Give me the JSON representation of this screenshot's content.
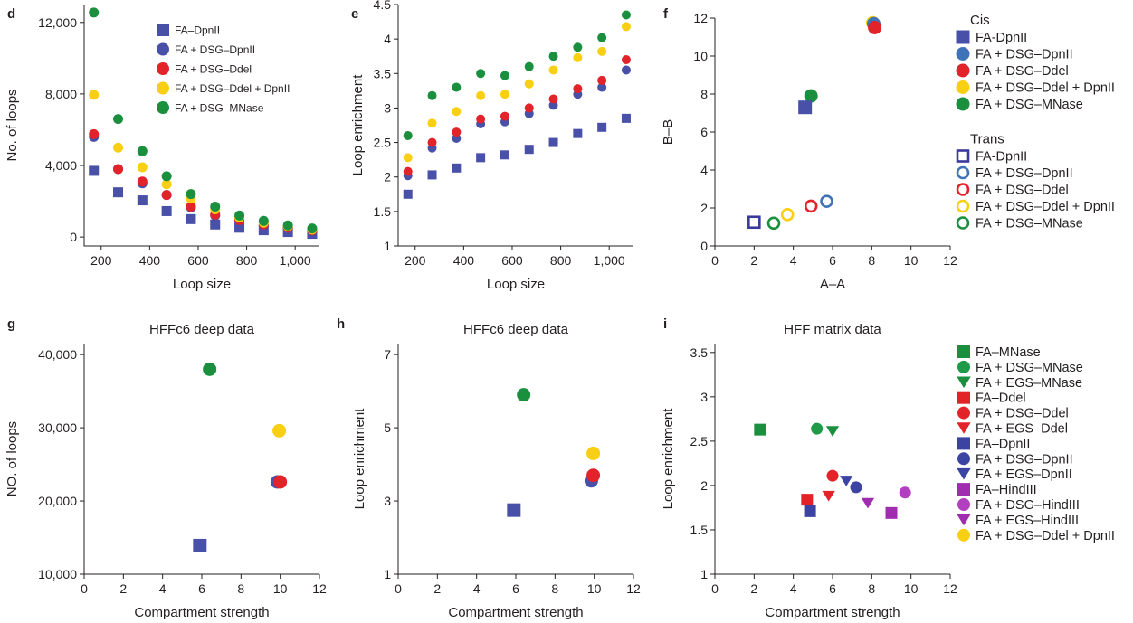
{
  "colors": {
    "blue_square": "#4850a8",
    "blue_circle": "#3e73b8",
    "red": "#e3232a",
    "yellow": "#f9cf13",
    "green": "#1a8f3e",
    "green_light": "#1f9a48",
    "navy": "#3a3a9c",
    "purple": "#a02caf",
    "purple_light": "#b23fc0",
    "blue_i": "#3b43a3"
  },
  "chart_data": [
    {
      "panel": "d",
      "type": "scatter",
      "title": "",
      "xlabel": "Loop size",
      "ylabel": "No. of loops",
      "xlim": [
        130,
        1100
      ],
      "ylim": [
        -500,
        13000
      ],
      "xticks": [
        200,
        400,
        600,
        800,
        1000
      ],
      "xtick_labels": [
        "200",
        "400",
        "600",
        "800",
        "1,000"
      ],
      "yticks": [
        0,
        4000,
        8000,
        12000
      ],
      "ytick_labels": [
        "0",
        "4,000",
        "8,000",
        "12,000"
      ],
      "x": [
        170,
        270,
        370,
        470,
        570,
        670,
        770,
        870,
        970,
        1070
      ],
      "series": [
        {
          "name": "FA–DpnII",
          "marker": "square",
          "color": "#4850a8",
          "values": [
            3700,
            2500,
            2050,
            1450,
            1000,
            700,
            520,
            380,
            280,
            180
          ]
        },
        {
          "name": "FA + DSG–DpnII",
          "marker": "circle",
          "color": "#4850a8",
          "values": [
            5600,
            3800,
            3000,
            2350,
            1650,
            1200,
            900,
            650,
            480,
            330
          ]
        },
        {
          "name": "FA + DSG–Ddel",
          "marker": "circle",
          "color": "#e3232a",
          "values": [
            5750,
            3800,
            3100,
            2350,
            1700,
            1250,
            950,
            700,
            520,
            370
          ]
        },
        {
          "name": "FA + DSG–Ddel + DpnII",
          "marker": "circle",
          "color": "#f9cf13",
          "values": [
            7950,
            5000,
            3900,
            2950,
            2150,
            1550,
            1100,
            800,
            600,
            420
          ]
        },
        {
          "name": "FA + DSG–MNase",
          "marker": "circle",
          "color": "#1a8f3e",
          "values": [
            12550,
            6600,
            4800,
            3400,
            2400,
            1700,
            1200,
            900,
            650,
            480
          ]
        }
      ],
      "legend": "top-right"
    },
    {
      "panel": "e",
      "type": "scatter",
      "title": "",
      "xlabel": "Loop size",
      "ylabel": "Loop enrichment",
      "xlim": [
        130,
        1100
      ],
      "ylim": [
        1,
        4.5
      ],
      "xticks": [
        200,
        400,
        600,
        800,
        1000
      ],
      "xtick_labels": [
        "200",
        "400",
        "600",
        "800",
        "1,000"
      ],
      "yticks": [
        1,
        1.5,
        2,
        2.5,
        3,
        3.5,
        4,
        4.5
      ],
      "ytick_labels": [
        "1",
        "1.5",
        "2",
        "2.5",
        "3",
        "3.5",
        "4",
        "4.5"
      ],
      "x": [
        170,
        270,
        370,
        470,
        570,
        670,
        770,
        870,
        970,
        1070
      ],
      "series": [
        {
          "name": "FA–DpnII",
          "marker": "square",
          "color": "#4850a8",
          "values": [
            1.75,
            2.03,
            2.13,
            2.28,
            2.32,
            2.4,
            2.5,
            2.63,
            2.72,
            2.85
          ]
        },
        {
          "name": "FA + DSG–DpnII",
          "marker": "circle",
          "color": "#4850a8",
          "values": [
            2.02,
            2.42,
            2.56,
            2.77,
            2.8,
            2.92,
            3.04,
            3.2,
            3.3,
            3.55
          ]
        },
        {
          "name": "FA + DSG–Ddel",
          "marker": "circle",
          "color": "#e3232a",
          "values": [
            2.08,
            2.5,
            2.65,
            2.84,
            2.88,
            3.0,
            3.13,
            3.28,
            3.4,
            3.7
          ]
        },
        {
          "name": "FA + DSG–Ddel + DpnII",
          "marker": "circle",
          "color": "#f9cf13",
          "values": [
            2.28,
            2.78,
            2.95,
            3.18,
            3.2,
            3.35,
            3.55,
            3.73,
            3.82,
            4.18
          ]
        },
        {
          "name": "FA + DSG–MNase",
          "marker": "circle",
          "color": "#1a8f3e",
          "values": [
            2.6,
            3.18,
            3.3,
            3.5,
            3.47,
            3.6,
            3.75,
            3.88,
            4.02,
            4.35
          ]
        }
      ]
    },
    {
      "panel": "f",
      "type": "scatter",
      "title": "",
      "xlabel": "A–A",
      "ylabel": "B–B",
      "xlim": [
        0,
        12
      ],
      "ylim": [
        0,
        12
      ],
      "xticks": [
        0,
        2,
        4,
        6,
        8,
        10,
        12
      ],
      "xtick_labels": [
        "0",
        "2",
        "4",
        "6",
        "8",
        "10",
        "12"
      ],
      "yticks": [
        0,
        2,
        4,
        6,
        8,
        10,
        12
      ],
      "ytick_labels": [
        "0",
        "2",
        "4",
        "6",
        "8",
        "10",
        "12"
      ],
      "points": [
        {
          "group": "Cis",
          "name": "FA + DSG–Ddel + DpnII",
          "x": 8.05,
          "y": 11.75,
          "marker": "circle",
          "filled": true,
          "color": "#f9cf13"
        },
        {
          "group": "Cis",
          "name": "FA + DSG–DpnII",
          "x": 8.1,
          "y": 11.7,
          "marker": "circle",
          "filled": true,
          "color": "#3e73b8"
        },
        {
          "group": "Cis",
          "name": "FA + DSG–Ddel",
          "x": 8.15,
          "y": 11.5,
          "marker": "circle",
          "filled": true,
          "color": "#e3232a"
        },
        {
          "group": "Cis",
          "name": "FA + DSG–MNase",
          "x": 4.9,
          "y": 7.9,
          "marker": "circle",
          "filled": true,
          "color": "#1a8f3e"
        },
        {
          "group": "Cis",
          "name": "FA-DpnII",
          "x": 4.6,
          "y": 7.3,
          "marker": "square",
          "filled": true,
          "color": "#4850a8"
        },
        {
          "group": "Trans",
          "name": "FA-DpnII",
          "x": 2.0,
          "y": 1.25,
          "marker": "square",
          "filled": false,
          "color": "#3a3a9c"
        },
        {
          "group": "Trans",
          "name": "FA + DSG–MNase",
          "x": 3.0,
          "y": 1.2,
          "marker": "circle",
          "filled": false,
          "color": "#1a8f3e"
        },
        {
          "group": "Trans",
          "name": "FA + DSG–Ddel + DpnII",
          "x": 3.7,
          "y": 1.65,
          "marker": "circle",
          "filled": false,
          "color": "#f9cf13"
        },
        {
          "group": "Trans",
          "name": "FA + DSG–Ddel",
          "x": 4.9,
          "y": 2.1,
          "marker": "circle",
          "filled": false,
          "color": "#e3232a"
        },
        {
          "group": "Trans",
          "name": "FA + DSG–DpnII",
          "x": 5.7,
          "y": 2.35,
          "marker": "circle",
          "filled": false,
          "color": "#3e73b8"
        }
      ],
      "legend_groups": [
        {
          "title": "Cis",
          "entries": [
            {
              "label": "FA-DpnII",
              "marker": "square",
              "filled": true,
              "color": "#4850a8"
            },
            {
              "label": "FA + DSG–DpnII",
              "marker": "circle",
              "filled": true,
              "color": "#3e73b8"
            },
            {
              "label": "FA + DSG–Ddel",
              "marker": "circle",
              "filled": true,
              "color": "#e3232a"
            },
            {
              "label": "FA + DSG–Ddel + DpnII",
              "marker": "circle",
              "filled": true,
              "color": "#f9cf13"
            },
            {
              "label": "FA + DSG–MNase",
              "marker": "circle",
              "filled": true,
              "color": "#1a8f3e"
            }
          ]
        },
        {
          "title": "Trans",
          "entries": [
            {
              "label": "FA-DpnII",
              "marker": "square",
              "filled": false,
              "color": "#3a3a9c"
            },
            {
              "label": "FA + DSG–DpnII",
              "marker": "circle",
              "filled": false,
              "color": "#3e73b8"
            },
            {
              "label": "FA + DSG–Ddel",
              "marker": "circle",
              "filled": false,
              "color": "#e3232a"
            },
            {
              "label": "FA + DSG–Ddel + DpnII",
              "marker": "circle",
              "filled": false,
              "color": "#f9cf13"
            },
            {
              "label": "FA + DSG–MNase",
              "marker": "circle",
              "filled": false,
              "color": "#1a8f3e"
            }
          ]
        }
      ]
    },
    {
      "panel": "g",
      "type": "scatter",
      "title": "HFFc6 deep data",
      "xlabel": "Compartment strength",
      "ylabel": "NO. of loops",
      "xlim": [
        0,
        12
      ],
      "ylim": [
        10000,
        41500
      ],
      "xticks": [
        0,
        2,
        4,
        6,
        8,
        10,
        12
      ],
      "xtick_labels": [
        "0",
        "2",
        "4",
        "6",
        "8",
        "10",
        "12"
      ],
      "yticks": [
        10000,
        20000,
        30000,
        40000
      ],
      "ytick_labels": [
        "10,000",
        "20,000",
        "30,000",
        "40,000"
      ],
      "points": [
        {
          "name": "FA–DpnII",
          "x": 5.9,
          "y": 13900,
          "marker": "square",
          "color": "#4850a8"
        },
        {
          "name": "FA + DSG–MNase",
          "x": 6.4,
          "y": 38000,
          "marker": "circle",
          "color": "#1a8f3e"
        },
        {
          "name": "FA + DSG–DpnII",
          "x": 9.85,
          "y": 22600,
          "marker": "circle",
          "color": "#4850a8"
        },
        {
          "name": "FA + DSG–Ddel",
          "x": 10.0,
          "y": 22600,
          "marker": "circle",
          "color": "#e3232a"
        },
        {
          "name": "FA + DSG–Ddel + DpnII",
          "x": 9.95,
          "y": 29600,
          "marker": "circle",
          "color": "#f9cf13"
        }
      ]
    },
    {
      "panel": "h",
      "type": "scatter",
      "title": "HFFc6 deep data",
      "xlabel": "Compartment strength",
      "ylabel": "Loop enrichment",
      "xlim": [
        0,
        12
      ],
      "ylim": [
        1,
        7.3
      ],
      "xticks": [
        0,
        2,
        4,
        6,
        8,
        10,
        12
      ],
      "xtick_labels": [
        "0",
        "2",
        "4",
        "6",
        "8",
        "10",
        "12"
      ],
      "yticks": [
        1,
        3,
        5,
        7
      ],
      "ytick_labels": [
        "1",
        "3",
        "5",
        "7"
      ],
      "points": [
        {
          "name": "FA–DpnII",
          "x": 5.9,
          "y": 2.75,
          "marker": "square",
          "color": "#4850a8"
        },
        {
          "name": "FA + DSG–MNase",
          "x": 6.4,
          "y": 5.9,
          "marker": "circle",
          "color": "#1a8f3e"
        },
        {
          "name": "FA + DSG–DpnII",
          "x": 9.85,
          "y": 3.55,
          "marker": "circle",
          "color": "#4850a8"
        },
        {
          "name": "FA + DSG–Ddel",
          "x": 9.95,
          "y": 3.7,
          "marker": "circle",
          "color": "#e3232a"
        },
        {
          "name": "FA + DSG–Ddel + DpnII",
          "x": 9.95,
          "y": 4.3,
          "marker": "circle",
          "color": "#f9cf13"
        }
      ]
    },
    {
      "panel": "i",
      "type": "scatter",
      "title": "HFF matrix data",
      "xlabel": "Compartment strength",
      "ylabel": "Loop enrichment",
      "xlim": [
        0,
        12
      ],
      "ylim": [
        1,
        3.6
      ],
      "xticks": [
        0,
        2,
        4,
        6,
        8,
        10,
        12
      ],
      "xtick_labels": [
        "0",
        "2",
        "4",
        "6",
        "8",
        "10",
        "12"
      ],
      "yticks": [
        1,
        1.5,
        2,
        2.5,
        3,
        3.5
      ],
      "ytick_labels": [
        "1",
        "1.5",
        "2",
        "2.5",
        "3",
        "3.5"
      ],
      "points": [
        {
          "name": "FA–MNase",
          "x": 2.3,
          "y": 2.63,
          "marker": "square",
          "color": "#1a8f3e"
        },
        {
          "name": "FA + DSG–MNase",
          "x": 5.2,
          "y": 2.64,
          "marker": "circle",
          "color": "#1f9a48"
        },
        {
          "name": "FA + EGS–MNase",
          "x": 6.0,
          "y": 2.61,
          "marker": "triangle",
          "color": "#1a8f3e"
        },
        {
          "name": "FA–Ddel",
          "x": 4.7,
          "y": 1.84,
          "marker": "square",
          "color": "#e3232a"
        },
        {
          "name": "FA + DSG–Ddel",
          "x": 6.0,
          "y": 2.11,
          "marker": "circle",
          "color": "#e3232a"
        },
        {
          "name": "FA + EGS–Ddel",
          "x": 5.8,
          "y": 1.88,
          "marker": "triangle",
          "color": "#e3232a"
        },
        {
          "name": "FA–DpnII",
          "x": 4.85,
          "y": 1.71,
          "marker": "square",
          "color": "#3b43a3"
        },
        {
          "name": "FA + DSG–DpnII",
          "x": 7.2,
          "y": 1.98,
          "marker": "circle",
          "color": "#3b43a3"
        },
        {
          "name": "FA + EGS–DpnII",
          "x": 6.7,
          "y": 2.05,
          "marker": "triangle",
          "color": "#3b43a3"
        },
        {
          "name": "FA–HindIII",
          "x": 9.0,
          "y": 1.69,
          "marker": "square",
          "color": "#a02caf"
        },
        {
          "name": "FA + DSG–HindIII",
          "x": 9.7,
          "y": 1.92,
          "marker": "circle",
          "color": "#b23fc0"
        },
        {
          "name": "FA + EGS–HindIII",
          "x": 7.8,
          "y": 1.8,
          "marker": "triangle",
          "color": "#a02caf"
        }
      ],
      "legend": [
        {
          "label": "FA–MNase",
          "marker": "square",
          "color": "#1a8f3e"
        },
        {
          "label": "FA + DSG–MNase",
          "marker": "circle",
          "color": "#1f9a48"
        },
        {
          "label": "FA + EGS–MNase",
          "marker": "triangle",
          "color": "#1a8f3e"
        },
        {
          "label": "FA–Ddel",
          "marker": "square",
          "color": "#e3232a"
        },
        {
          "label": "FA + DSG–Ddel",
          "marker": "circle",
          "color": "#e3232a"
        },
        {
          "label": "FA + EGS–Ddel",
          "marker": "triangle",
          "color": "#e3232a"
        },
        {
          "label": "FA–DpnII",
          "marker": "square",
          "color": "#3b43a3"
        },
        {
          "label": "FA + DSG–DpnII",
          "marker": "circle",
          "color": "#3b43a3"
        },
        {
          "label": "FA + EGS–DpnII",
          "marker": "triangle",
          "color": "#3b43a3"
        },
        {
          "label": "FA–HindIII",
          "marker": "square",
          "color": "#a02caf"
        },
        {
          "label": "FA + DSG–HindIII",
          "marker": "circle",
          "color": "#b23fc0"
        },
        {
          "label": "FA + EGS–HindIII",
          "marker": "triangle",
          "color": "#a02caf"
        },
        {
          "label": "FA + DSG–Ddel + DpnII",
          "marker": "circle",
          "color": "#f9cf13"
        }
      ]
    }
  ]
}
